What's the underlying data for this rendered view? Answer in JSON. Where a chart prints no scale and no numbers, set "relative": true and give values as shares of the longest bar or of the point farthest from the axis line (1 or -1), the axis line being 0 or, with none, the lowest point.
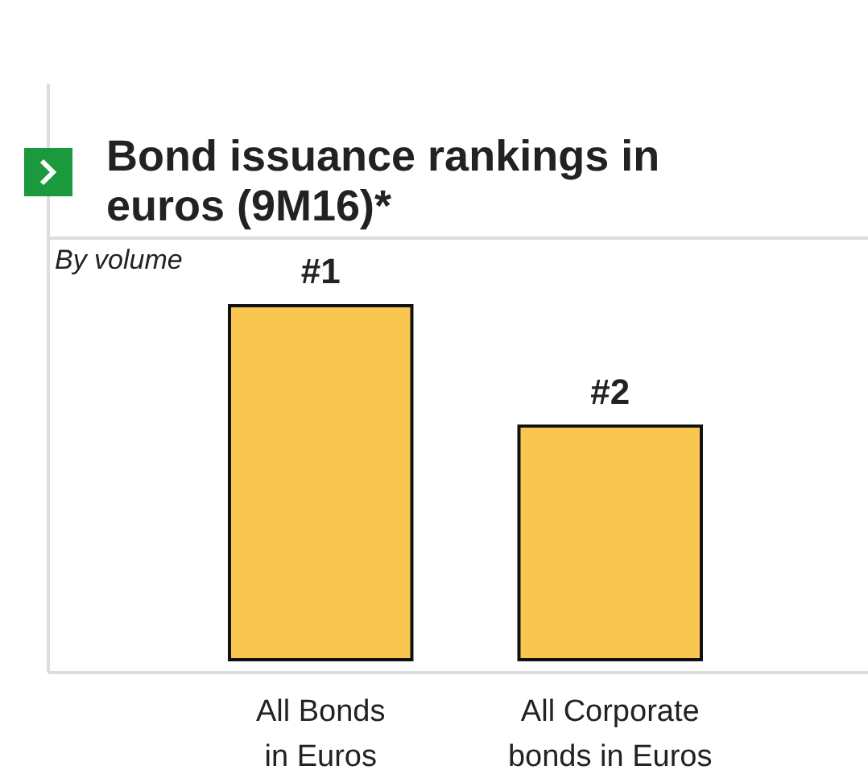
{
  "chart_data": {
    "type": "bar",
    "title": "Bond issuance rankings in euros (9M16)*",
    "subtitle": "By volume",
    "relative": true,
    "categories": [
      "All Bonds in Euros",
      "All Corporate bonds in Euros"
    ],
    "values": [
      1,
      0.66
    ],
    "color": "#f9c74f",
    "annotations": [
      {
        "text": "#1",
        "x": "All Bonds in Euros",
        "y": 1
      },
      {
        "text": "#2",
        "x": "All Corporate bonds in Euros",
        "y": 0.66
      }
    ]
  }
}
